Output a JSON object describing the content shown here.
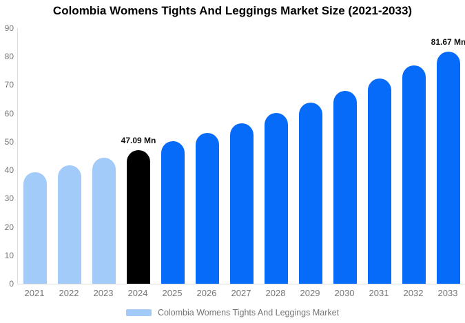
{
  "chart_data": {
    "type": "bar",
    "title": "Colombia Womens Tights And Leggings Market Size (2021-2033)",
    "categories": [
      "2021",
      "2022",
      "2023",
      "2024",
      "2025",
      "2026",
      "2027",
      "2028",
      "2029",
      "2030",
      "2031",
      "2032",
      "2033"
    ],
    "values": [
      39.2,
      41.7,
      44.3,
      47.09,
      50.1,
      53.2,
      56.6,
      60.1,
      63.9,
      67.9,
      72.2,
      76.8,
      81.67
    ],
    "unit": "Mn",
    "xlabel": "",
    "ylabel": "",
    "ylim": [
      0,
      90
    ],
    "yticks": [
      0,
      10,
      20,
      30,
      40,
      50,
      60,
      70,
      80,
      90
    ],
    "grid": false,
    "point_colors": [
      "#a2cbf9",
      "#a2cbf9",
      "#a2cbf9",
      "#000000",
      "#076bfa",
      "#076bfa",
      "#076bfa",
      "#076bfa",
      "#076bfa",
      "#076bfa",
      "#076bfa",
      "#076bfa",
      "#076bfa"
    ],
    "annotations": [
      {
        "category": "2024",
        "label": "47.09 Mn"
      },
      {
        "category": "2033",
        "label": "81.67 Mn"
      }
    ],
    "legend": {
      "position": "bottom",
      "label": "Colombia Womens Tights And Leggings Market",
      "swatch_color": "#a2cbf9"
    },
    "colors": {
      "axis_line": "#dddddd",
      "tick_label": "#757575",
      "value_label": "#111111",
      "title": "#000000",
      "background": "#ffffff"
    }
  }
}
